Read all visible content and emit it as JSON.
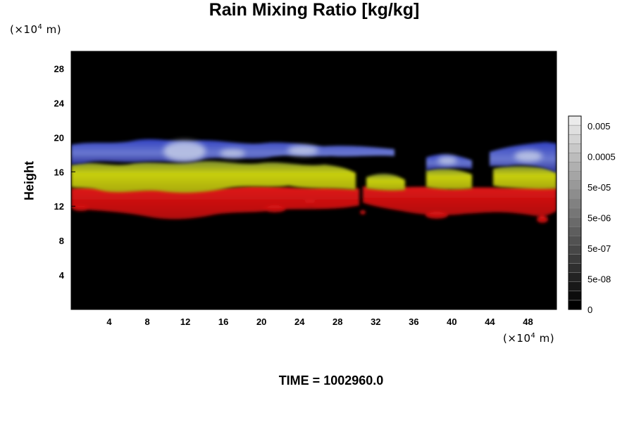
{
  "chart_data": {
    "type": "heatmap",
    "title": "Rain Mixing Ratio [kg/kg]",
    "xlabel": "",
    "ylabel": "Height",
    "x_unit": "(×10⁴ m)",
    "y_unit": "(×10⁴ m)",
    "xlim": [
      0,
      51
    ],
    "ylim": [
      0,
      30
    ],
    "x_ticks": [
      "4",
      "8",
      "12",
      "16",
      "20",
      "24",
      "28",
      "32",
      "36",
      "40",
      "44",
      "48"
    ],
    "y_ticks": [
      "4",
      "8",
      "12",
      "16",
      "20",
      "24",
      "28"
    ],
    "colorbar": {
      "labels": [
        "0.005",
        "0.0005",
        "5e-05",
        "5e-06",
        "5e-07",
        "5e-08",
        "0"
      ],
      "levels": 21,
      "colors": [
        "#000000",
        "#ffffff"
      ]
    },
    "layers": [
      {
        "color": "#dd1010",
        "description_range": [
          10.5,
          14
        ]
      },
      {
        "color": "#b8c010",
        "description_range": [
          14,
          17
        ]
      },
      {
        "color": "#2830b8",
        "description_range": [
          16.5,
          19.5
        ]
      }
    ],
    "background": "#000000"
  },
  "footer": {
    "time_label": "TIME = 1002960.0"
  }
}
